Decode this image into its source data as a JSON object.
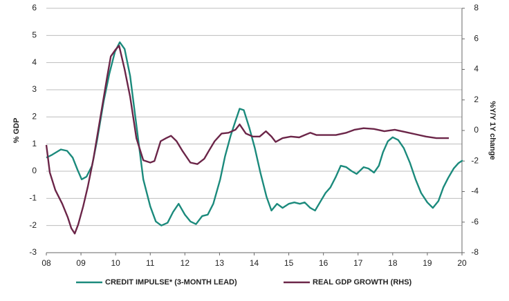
{
  "chart_data": {
    "type": "line",
    "y_label": "% GDP",
    "y2_label": "%Y/Y 1Y change",
    "xlim": [
      8,
      20
    ],
    "xticks": [
      {
        "value": 8,
        "label": "08"
      },
      {
        "value": 9,
        "label": "09"
      },
      {
        "value": 10,
        "label": "10"
      },
      {
        "value": 11,
        "label": "11"
      },
      {
        "value": 12,
        "label": "12"
      },
      {
        "value": 13,
        "label": "13"
      },
      {
        "value": 14,
        "label": "14"
      },
      {
        "value": 15,
        "label": "15"
      },
      {
        "value": 16,
        "label": "16"
      },
      {
        "value": 17,
        "label": "17"
      },
      {
        "value": 18,
        "label": "18"
      },
      {
        "value": 19,
        "label": "19"
      },
      {
        "value": 20,
        "label": "20"
      }
    ],
    "ylim": [
      -3,
      6
    ],
    "yticks": [
      -3,
      -2,
      -1,
      0,
      1,
      2,
      3,
      4,
      5,
      6
    ],
    "y2lim": [
      -8,
      8
    ],
    "y2ticks": [
      -8,
      -6,
      -4,
      -2,
      0,
      2,
      4,
      6,
      8
    ],
    "grid": true,
    "series": [
      {
        "name": "CREDIT IMPULSE* (3-MONTH LEAD)",
        "color": "#1b8a7c",
        "x": [
          8.0,
          8.16,
          8.42,
          8.6,
          8.76,
          8.9,
          9.02,
          9.16,
          9.32,
          9.46,
          9.66,
          9.82,
          9.98,
          10.12,
          10.26,
          10.42,
          10.62,
          10.8,
          11.0,
          11.16,
          11.32,
          11.5,
          11.66,
          11.82,
          12.0,
          12.16,
          12.32,
          12.5,
          12.66,
          12.82,
          13.02,
          13.16,
          13.32,
          13.46,
          13.58,
          13.7,
          13.86,
          14.02,
          14.18,
          14.36,
          14.5,
          14.66,
          14.82,
          15.0,
          15.16,
          15.32,
          15.46,
          15.62,
          15.76,
          15.92,
          16.06,
          16.2,
          16.36,
          16.5,
          16.66,
          16.82,
          16.96,
          17.16,
          17.3,
          17.46,
          17.6,
          17.72,
          17.86,
          18.0,
          18.16,
          18.32,
          18.5,
          18.66,
          18.82,
          19.0,
          19.16,
          19.32,
          19.46,
          19.6,
          19.76,
          19.9,
          20.02
        ],
        "values": [
          0.5,
          0.6,
          0.8,
          0.75,
          0.5,
          0.05,
          -0.3,
          -0.2,
          0.2,
          1.1,
          2.6,
          3.6,
          4.4,
          4.75,
          4.5,
          3.5,
          1.5,
          -0.3,
          -1.3,
          -1.85,
          -2.0,
          -1.9,
          -1.5,
          -1.2,
          -1.6,
          -1.85,
          -1.95,
          -1.65,
          -1.6,
          -1.2,
          -0.3,
          0.55,
          1.3,
          1.85,
          2.3,
          2.25,
          1.6,
          0.85,
          -0.05,
          -0.95,
          -1.45,
          -1.2,
          -1.35,
          -1.2,
          -1.15,
          -1.2,
          -1.15,
          -1.35,
          -1.45,
          -1.1,
          -0.8,
          -0.6,
          -0.2,
          0.2,
          0.15,
          0.0,
          -0.1,
          0.15,
          0.1,
          -0.05,
          0.2,
          0.7,
          1.1,
          1.25,
          1.15,
          0.85,
          0.3,
          -0.3,
          -0.8,
          -1.15,
          -1.35,
          -1.1,
          -0.6,
          -0.25,
          0.1,
          0.3,
          0.4
        ]
      },
      {
        "name": "REAL GDP GROWTH (RHS)",
        "color": "#6b2548",
        "axis": "y2",
        "x": [
          8.0,
          8.1,
          8.26,
          8.46,
          8.62,
          8.72,
          8.82,
          8.92,
          9.06,
          9.2,
          9.36,
          9.56,
          9.76,
          9.86,
          10.0,
          10.1,
          10.26,
          10.42,
          10.6,
          10.8,
          11.0,
          11.12,
          11.3,
          11.46,
          11.6,
          11.76,
          11.92,
          12.16,
          12.36,
          12.56,
          12.7,
          12.86,
          13.06,
          13.26,
          13.46,
          13.58,
          13.76,
          13.96,
          14.16,
          14.34,
          14.5,
          14.62,
          14.82,
          15.06,
          15.3,
          15.46,
          15.62,
          15.8,
          16.06,
          16.36,
          16.66,
          16.9,
          17.16,
          17.46,
          17.76,
          18.06,
          18.36,
          18.66,
          18.96,
          19.26,
          19.62
        ],
        "values": [
          -0.95,
          -2.75,
          -3.9,
          -4.8,
          -5.7,
          -6.4,
          -6.75,
          -6.15,
          -5.0,
          -3.65,
          -1.85,
          0.85,
          3.55,
          4.85,
          5.3,
          5.55,
          4.0,
          2.2,
          -0.5,
          -1.95,
          -2.1,
          -2.0,
          -0.7,
          -0.5,
          -0.35,
          -0.7,
          -1.3,
          -2.1,
          -2.2,
          -1.85,
          -1.3,
          -0.7,
          -0.2,
          -0.15,
          0.05,
          0.4,
          -0.2,
          -0.4,
          -0.4,
          -0.05,
          -0.4,
          -0.75,
          -0.5,
          -0.4,
          -0.45,
          -0.3,
          -0.15,
          -0.3,
          -0.3,
          -0.3,
          -0.15,
          0.05,
          0.15,
          0.1,
          -0.05,
          0.05,
          -0.1,
          -0.25,
          -0.4,
          -0.5,
          -0.5
        ]
      }
    ]
  }
}
